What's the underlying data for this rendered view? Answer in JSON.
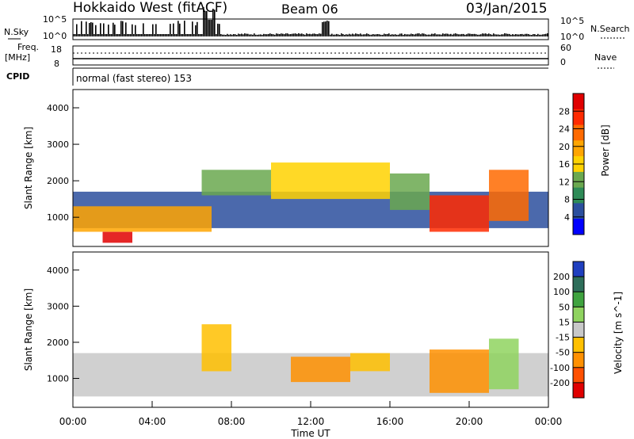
{
  "header": {
    "title": "Hokkaido West (fitACF)",
    "beam": "Beam 06",
    "date": "03/Jan/2015"
  },
  "strip_labels": {
    "nsky": "N.Sky",
    "freq_line1": "Freq.",
    "freq_line2": "[MHz]",
    "cpid": "CPID",
    "nsearch": "N.Search",
    "nave": "Nave",
    "nsky_ticks": [
      "10^5",
      "10^0"
    ],
    "nsearch_ticks": [
      "10^5",
      "10^0"
    ],
    "freq_ticks": [
      "18",
      "8"
    ],
    "nave_ticks": [
      "60",
      "0"
    ],
    "cpid_text": "normal (fast stereo) 153"
  },
  "colors": {
    "power": [
      "#0000ff",
      "#2b4f9e",
      "#2e8b57",
      "#6aa84f",
      "#ffd200",
      "#ffa500",
      "#ff6a00",
      "#ff2a00",
      "#e00000"
    ],
    "velocity": [
      "#1f3fbf",
      "#2e6e5a",
      "#3fa33f",
      "#8fd35f",
      "#c8c8c8",
      "#ffc000",
      "#ff9000",
      "#ff5000",
      "#e00000"
    ]
  },
  "chart_data": [
    {
      "type": "heatmap",
      "panel": "power",
      "ylabel": "Slant Range [km]",
      "yticks": [
        "1000",
        "2000",
        "3000",
        "4000"
      ],
      "ylim": [
        200,
        4500
      ],
      "colorbar_label": "Power [dB]",
      "colorbar_ticks": [
        "4",
        "8",
        "12",
        "16",
        "20",
        "24",
        "28"
      ],
      "colorbar_range": [
        0,
        30
      ],
      "regions": [
        {
          "t": [
            0,
            24
          ],
          "r": [
            700,
            1700
          ],
          "level": 1
        },
        {
          "t": [
            0,
            7
          ],
          "r": [
            600,
            1300
          ],
          "level": 5
        },
        {
          "t": [
            1.5,
            3
          ],
          "r": [
            300,
            600
          ],
          "level": 8
        },
        {
          "t": [
            6.5,
            10
          ],
          "r": [
            1600,
            2300
          ],
          "level": 3
        },
        {
          "t": [
            10,
            16
          ],
          "r": [
            1500,
            2500
          ],
          "level": 4
        },
        {
          "t": [
            16,
            18
          ],
          "r": [
            1200,
            2200
          ],
          "level": 3
        },
        {
          "t": [
            18,
            21
          ],
          "r": [
            600,
            1600
          ],
          "level": 7
        },
        {
          "t": [
            21,
            23
          ],
          "r": [
            900,
            2300
          ],
          "level": 6
        }
      ]
    },
    {
      "type": "heatmap",
      "panel": "velocity",
      "ylabel": "Slant Range [km]",
      "xlabel": "Time UT",
      "xticks": [
        "00:00",
        "04:00",
        "08:00",
        "12:00",
        "16:00",
        "20:00",
        "00:00"
      ],
      "xlim": [
        0,
        24
      ],
      "yticks": [
        "1000",
        "2000",
        "3000",
        "4000"
      ],
      "ylim": [
        200,
        4500
      ],
      "colorbar_label": "Velocity [m s^-1]",
      "colorbar_ticks": [
        "200",
        "100",
        "50",
        "15",
        "-15",
        "-50",
        "-100",
        "-200"
      ],
      "colorbar_range": [
        -250,
        250
      ],
      "regions": [
        {
          "t": [
            0,
            24
          ],
          "r": [
            500,
            1700
          ],
          "level": 4
        },
        {
          "t": [
            6.5,
            8
          ],
          "r": [
            1200,
            2500
          ],
          "level": 5
        },
        {
          "t": [
            11,
            14
          ],
          "r": [
            900,
            1600
          ],
          "level": 6
        },
        {
          "t": [
            14,
            16
          ],
          "r": [
            1200,
            1700
          ],
          "level": 5
        },
        {
          "t": [
            18,
            21
          ],
          "r": [
            600,
            1800
          ],
          "level": 6
        },
        {
          "t": [
            21,
            22.5
          ],
          "r": [
            700,
            2100
          ],
          "level": 3
        }
      ]
    }
  ]
}
